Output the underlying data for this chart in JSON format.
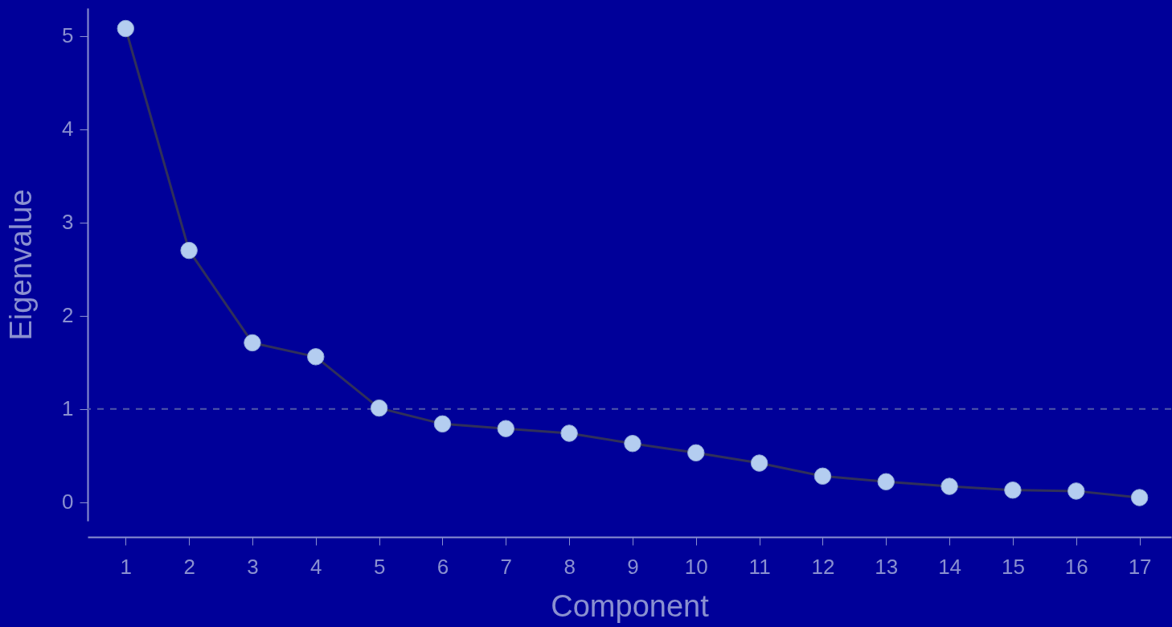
{
  "chart_data": {
    "type": "line",
    "xlabel": "Component",
    "ylabel": "Eigenvalue",
    "x": [
      1,
      2,
      3,
      4,
      5,
      6,
      7,
      8,
      9,
      10,
      11,
      12,
      13,
      14,
      15,
      16,
      17
    ],
    "series": [
      {
        "color": "#b4cdf0",
        "values": [
          5.08,
          2.7,
          1.71,
          1.56,
          1.01,
          0.84,
          0.79,
          0.74,
          0.63,
          0.53,
          0.42,
          0.28,
          0.22,
          0.17,
          0.13,
          0.12,
          0.05
        ]
      }
    ],
    "xlim": [
      0.4,
      17.5
    ],
    "xticks": [
      1,
      2,
      3,
      4,
      5,
      6,
      7,
      8,
      9,
      10,
      11,
      12,
      13,
      14,
      15,
      16,
      17
    ],
    "ylim": [
      -0.2,
      5.3
    ],
    "yticks": [
      0,
      1,
      2,
      3,
      4,
      5
    ],
    "ref_lines": [
      {
        "axis": "y",
        "value": 1,
        "line_style": "dashed"
      }
    ],
    "marker": "circle",
    "line_style": "solid",
    "grid": false
  }
}
